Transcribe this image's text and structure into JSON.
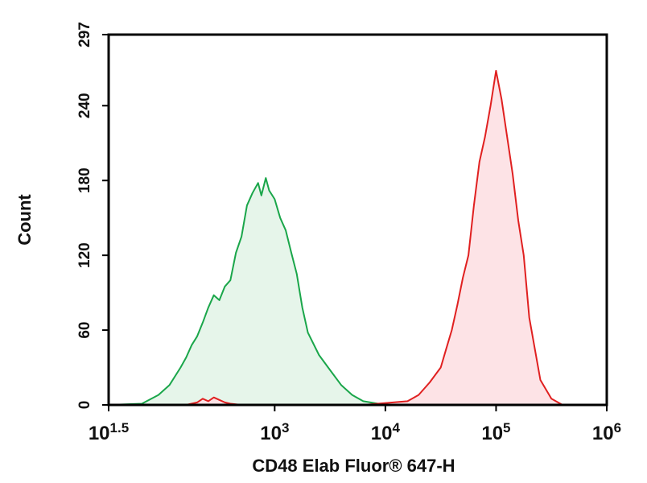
{
  "chart_data": {
    "type": "area",
    "title": "",
    "xlabel": "CD48 Elab Fluor® 647-H",
    "ylabel": "Count",
    "x_scale": "log10",
    "xlim": [
      1.5,
      6
    ],
    "ylim": [
      0,
      297
    ],
    "grid": false,
    "legend": "none",
    "x_ticks": [
      {
        "value": 1.5,
        "base": "10",
        "exp": "1.5"
      },
      {
        "value": 3,
        "base": "10",
        "exp": "3"
      },
      {
        "value": 4,
        "base": "10",
        "exp": "4"
      },
      {
        "value": 5,
        "base": "10",
        "exp": "5"
      },
      {
        "value": 6,
        "base": "10",
        "exp": "6"
      }
    ],
    "y_ticks": [
      {
        "value": 0,
        "label": "0"
      },
      {
        "value": 60,
        "label": "60"
      },
      {
        "value": 120,
        "label": "120"
      },
      {
        "value": 180,
        "label": "180"
      },
      {
        "value": 240,
        "label": "240"
      },
      {
        "value": 297,
        "label": "297"
      }
    ],
    "series": [
      {
        "color": "#1aa64a",
        "fill": "#e6f5ea",
        "x": [
          1.5,
          1.8,
          1.95,
          2.05,
          2.15,
          2.2,
          2.25,
          2.3,
          2.35,
          2.4,
          2.45,
          2.5,
          2.55,
          2.6,
          2.65,
          2.7,
          2.75,
          2.8,
          2.85,
          2.88,
          2.92,
          2.95,
          3.0,
          3.05,
          3.1,
          3.15,
          3.2,
          3.25,
          3.3,
          3.4,
          3.5,
          3.6,
          3.7,
          3.8,
          4.0
        ],
        "y": [
          0,
          1,
          8,
          16,
          30,
          38,
          48,
          55,
          66,
          78,
          88,
          84,
          95,
          100,
          122,
          135,
          160,
          170,
          178,
          168,
          182,
          172,
          165,
          150,
          140,
          122,
          105,
          78,
          58,
          40,
          28,
          16,
          8,
          3,
          0
        ]
      },
      {
        "color": "#e02020",
        "fill": "#fde3e6",
        "x": [
          1.5,
          2.2,
          2.3,
          2.35,
          2.4,
          2.45,
          2.5,
          2.55,
          2.6,
          2.7,
          3.8,
          4.2,
          4.3,
          4.4,
          4.5,
          4.55,
          4.6,
          4.65,
          4.7,
          4.75,
          4.8,
          4.85,
          4.9,
          4.95,
          5.0,
          5.05,
          5.1,
          5.15,
          5.2,
          5.25,
          5.3,
          5.35,
          5.4,
          5.5,
          5.6
        ],
        "y": [
          0,
          0,
          2,
          5,
          3,
          6,
          4,
          2,
          1,
          0,
          0,
          3,
          8,
          18,
          30,
          45,
          60,
          80,
          102,
          120,
          160,
          195,
          215,
          240,
          268,
          245,
          215,
          185,
          148,
          120,
          70,
          45,
          20,
          5,
          0
        ]
      }
    ]
  }
}
